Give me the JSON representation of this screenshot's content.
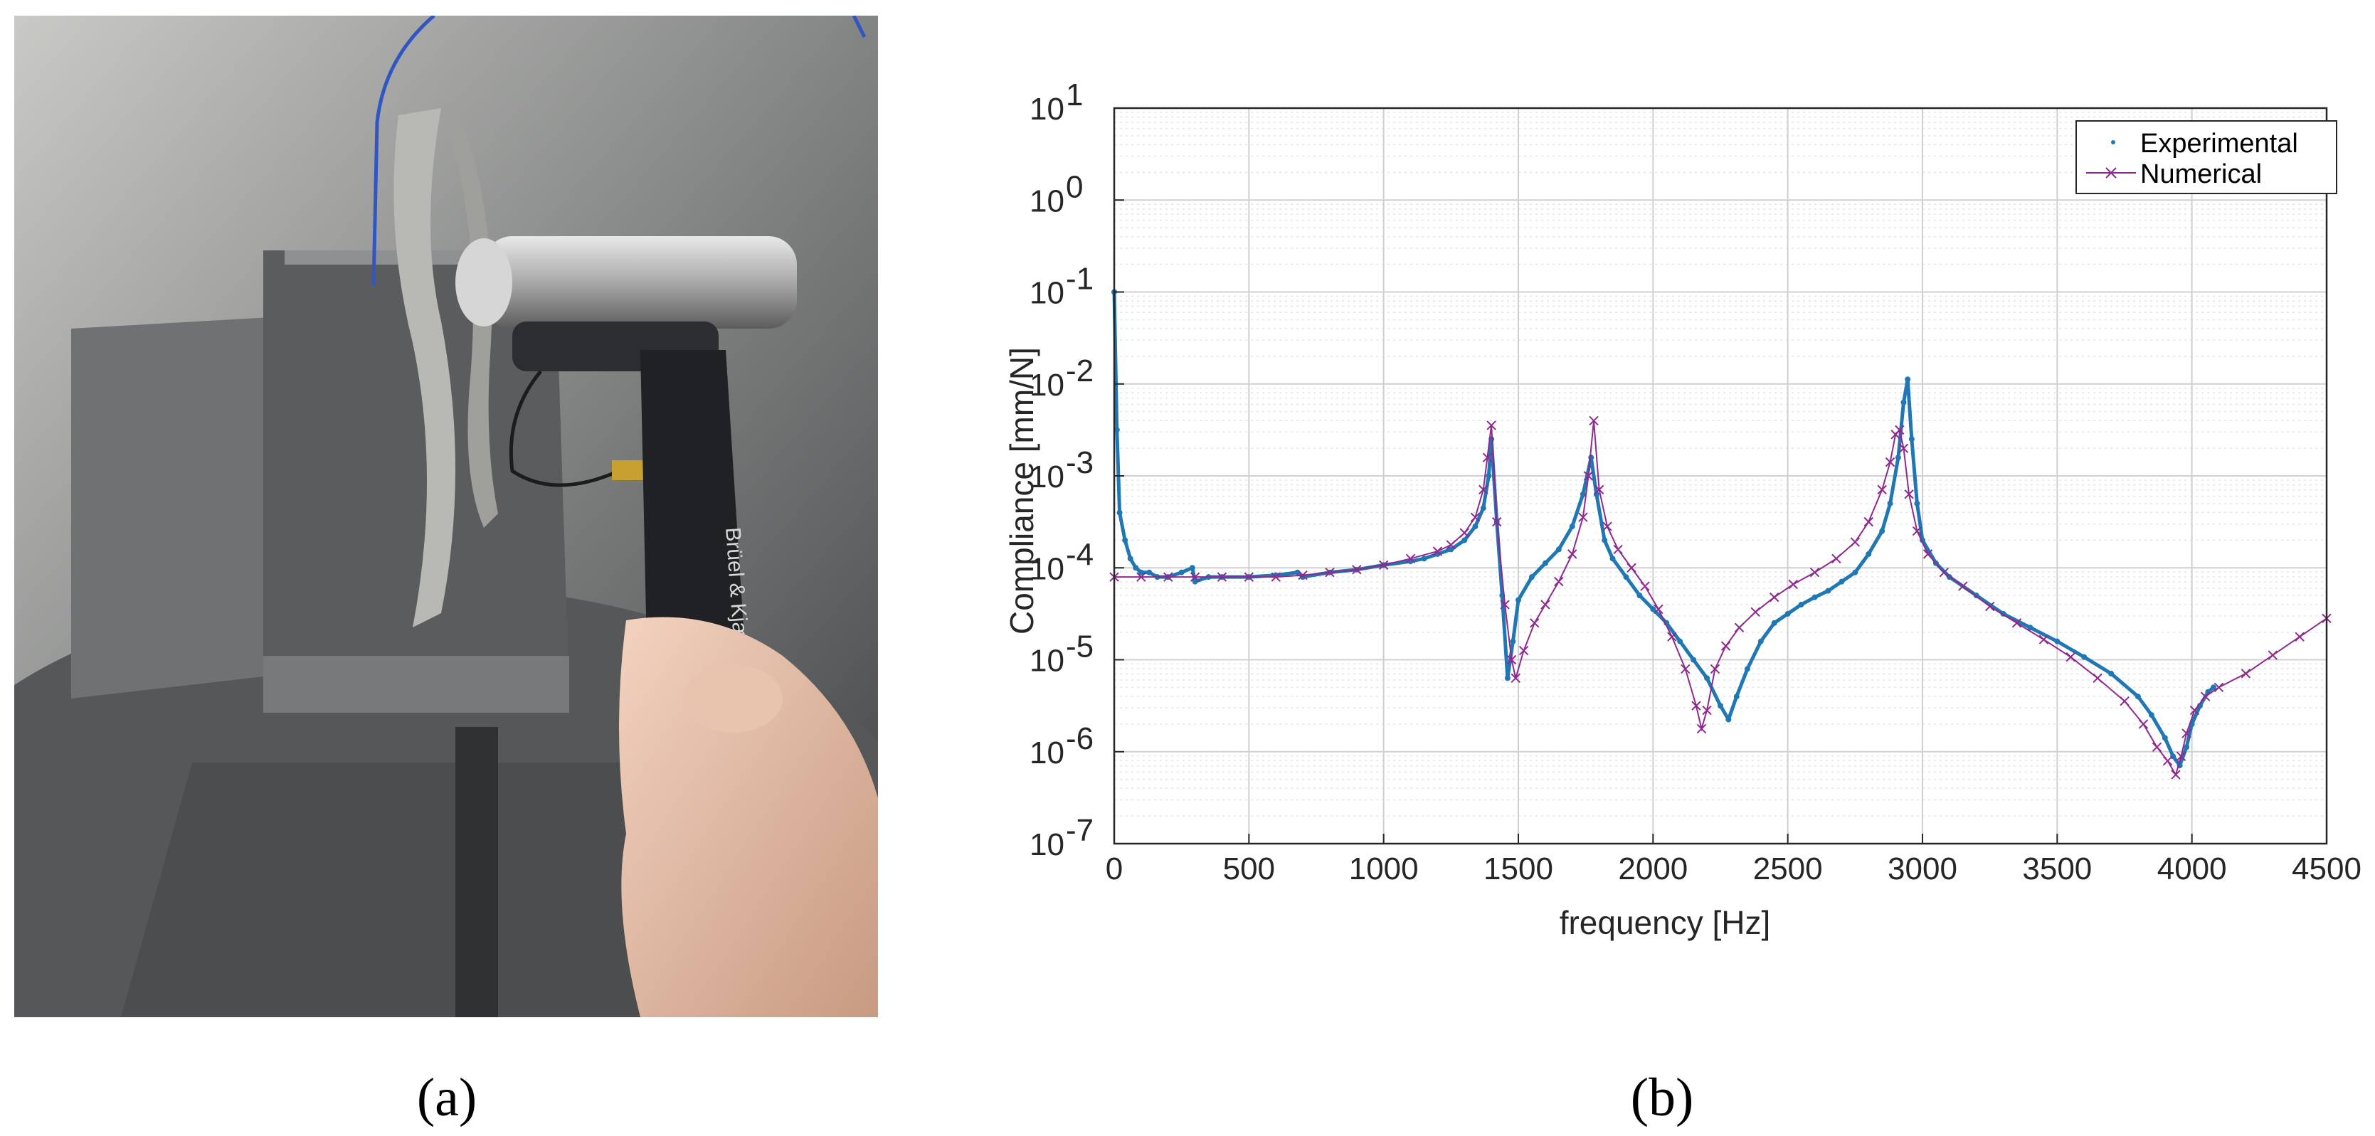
{
  "panels": {
    "a_label": "(a)",
    "b_label": "(b)"
  },
  "photo": {
    "hammer_text": "Brüel & Kjær Type 8202"
  },
  "colors": {
    "experimental": "#1f77b4",
    "numerical": "#8e2a8e",
    "grid": "#d0d0d0"
  },
  "chart_data": {
    "type": "line",
    "title": "",
    "xlabel": "frequency [Hz]",
    "ylabel": "Compliance [mm/N]",
    "xlim": [
      0,
      4500
    ],
    "ylim_log10": [
      -7,
      1
    ],
    "yscale": "log",
    "xticks": [
      "0",
      "500",
      "1000",
      "1500",
      "2000",
      "2500",
      "3000",
      "3500",
      "4000",
      "4500"
    ],
    "yticks": [
      {
        "base": "10",
        "exp": "1"
      },
      {
        "base": "10",
        "exp": "0"
      },
      {
        "base": "10",
        "exp": "-1"
      },
      {
        "base": "10",
        "exp": "-2"
      },
      {
        "base": "10",
        "exp": "-3"
      },
      {
        "base": "10",
        "exp": "-4"
      },
      {
        "base": "10",
        "exp": "-5"
      },
      {
        "base": "10",
        "exp": "-6"
      },
      {
        "base": "10",
        "exp": "-7"
      }
    ],
    "grid": true,
    "legend_position": "top-right",
    "series": [
      {
        "name": "Experimental",
        "marker": "dot",
        "x": [
          0,
          10,
          20,
          40,
          60,
          80,
          100,
          130,
          160,
          200,
          250,
          290,
          300,
          350,
          400,
          500,
          600,
          680,
          700,
          800,
          900,
          1000,
          1100,
          1150,
          1200,
          1250,
          1300,
          1340,
          1370,
          1390,
          1400,
          1420,
          1440,
          1460,
          1480,
          1500,
          1550,
          1600,
          1650,
          1700,
          1740,
          1770,
          1790,
          1820,
          1850,
          1900,
          1950,
          2000,
          2050,
          2100,
          2150,
          2200,
          2250,
          2280,
          2310,
          2350,
          2400,
          2450,
          2500,
          2550,
          2600,
          2650,
          2700,
          2750,
          2800,
          2850,
          2880,
          2910,
          2930,
          2945,
          2960,
          2980,
          3000,
          3050,
          3100,
          3200,
          3300,
          3400,
          3500,
          3600,
          3700,
          3800,
          3850,
          3900,
          3930,
          3955,
          3980,
          4000,
          4030,
          4060,
          4080
        ],
        "y_log10": [
          -1.0,
          -2.5,
          -3.4,
          -3.7,
          -3.9,
          -4.0,
          -4.05,
          -4.05,
          -4.1,
          -4.1,
          -4.05,
          -4.0,
          -4.15,
          -4.1,
          -4.1,
          -4.1,
          -4.08,
          -4.05,
          -4.1,
          -4.05,
          -4.02,
          -3.97,
          -3.93,
          -3.9,
          -3.85,
          -3.8,
          -3.7,
          -3.55,
          -3.35,
          -3.0,
          -2.6,
          -3.5,
          -4.3,
          -5.2,
          -4.8,
          -4.35,
          -4.1,
          -3.95,
          -3.8,
          -3.55,
          -3.2,
          -2.8,
          -3.2,
          -3.7,
          -3.9,
          -4.1,
          -4.3,
          -4.45,
          -4.6,
          -4.8,
          -5.0,
          -5.2,
          -5.5,
          -5.65,
          -5.4,
          -5.1,
          -4.8,
          -4.6,
          -4.5,
          -4.4,
          -4.32,
          -4.25,
          -4.15,
          -4.05,
          -3.85,
          -3.6,
          -3.3,
          -2.8,
          -2.2,
          -1.95,
          -2.6,
          -3.3,
          -3.7,
          -3.95,
          -4.1,
          -4.3,
          -4.5,
          -4.65,
          -4.8,
          -4.97,
          -5.15,
          -5.4,
          -5.6,
          -5.85,
          -6.05,
          -6.15,
          -5.95,
          -5.7,
          -5.5,
          -5.35,
          -5.3
        ]
      },
      {
        "name": "Numerical",
        "marker": "x",
        "x": [
          0,
          100,
          200,
          300,
          400,
          500,
          600,
          700,
          800,
          900,
          1000,
          1100,
          1200,
          1250,
          1300,
          1340,
          1370,
          1385,
          1400,
          1420,
          1450,
          1475,
          1490,
          1520,
          1560,
          1600,
          1650,
          1700,
          1740,
          1760,
          1780,
          1800,
          1830,
          1870,
          1920,
          1970,
          2020,
          2070,
          2120,
          2160,
          2180,
          2200,
          2230,
          2270,
          2320,
          2380,
          2450,
          2520,
          2600,
          2680,
          2750,
          2800,
          2850,
          2880,
          2900,
          2915,
          2930,
          2950,
          2980,
          3020,
          3080,
          3150,
          3250,
          3350,
          3450,
          3550,
          3650,
          3750,
          3820,
          3870,
          3910,
          3940,
          3960,
          3980,
          4010,
          4050,
          4100,
          4200,
          4300,
          4400,
          4500
        ],
        "y_log10": [
          -4.1,
          -4.1,
          -4.1,
          -4.1,
          -4.1,
          -4.1,
          -4.1,
          -4.08,
          -4.05,
          -4.02,
          -3.97,
          -3.9,
          -3.82,
          -3.75,
          -3.62,
          -3.45,
          -3.15,
          -2.8,
          -2.45,
          -3.5,
          -4.4,
          -5.0,
          -5.2,
          -4.9,
          -4.6,
          -4.4,
          -4.15,
          -3.85,
          -3.45,
          -3.0,
          -2.4,
          -3.15,
          -3.55,
          -3.8,
          -4.0,
          -4.2,
          -4.45,
          -4.75,
          -5.1,
          -5.5,
          -5.75,
          -5.55,
          -5.1,
          -4.85,
          -4.65,
          -4.48,
          -4.32,
          -4.18,
          -4.05,
          -3.9,
          -3.72,
          -3.5,
          -3.15,
          -2.85,
          -2.55,
          -2.5,
          -2.7,
          -3.2,
          -3.6,
          -3.85,
          -4.05,
          -4.2,
          -4.42,
          -4.6,
          -4.78,
          -4.97,
          -5.2,
          -5.45,
          -5.7,
          -5.95,
          -6.1,
          -6.25,
          -6.05,
          -5.8,
          -5.55,
          -5.4,
          -5.3,
          -5.15,
          -4.95,
          -4.75,
          -4.55
        ]
      }
    ]
  }
}
